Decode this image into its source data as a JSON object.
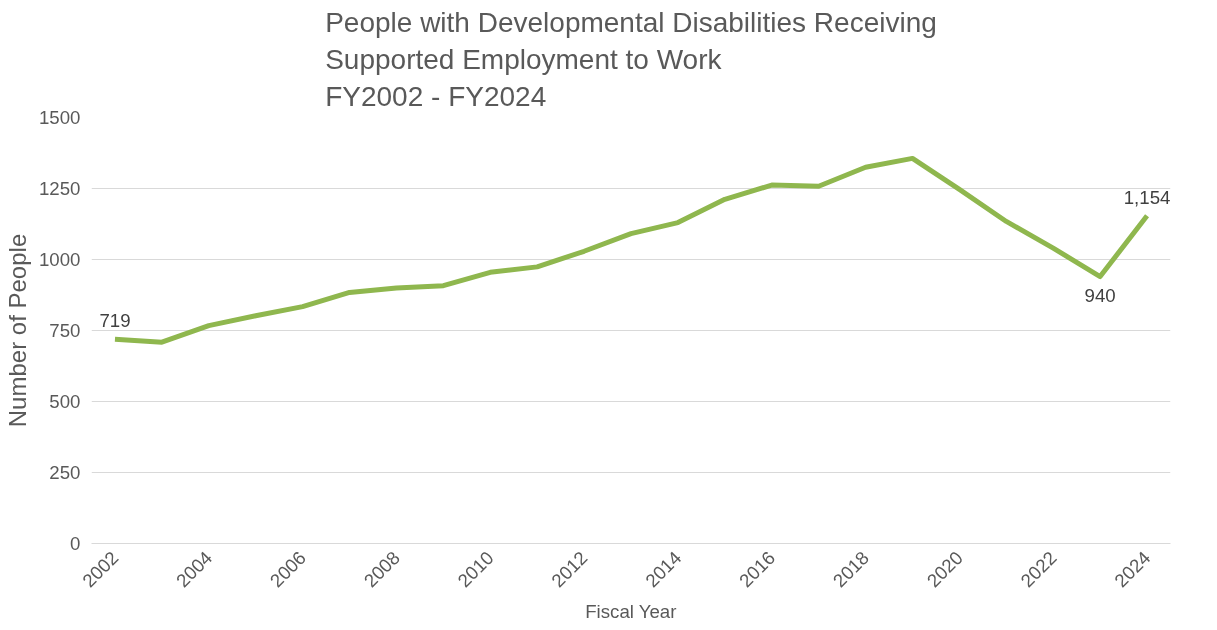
{
  "chart_data": {
    "type": "line",
    "title": "People with Developmental Disabilities Receiving\nSupported Employment to Work\nFY2002 - FY2024",
    "xlabel": "Fiscal Year",
    "ylabel": "Number of People",
    "x": [
      2002,
      2003,
      2004,
      2005,
      2006,
      2007,
      2008,
      2009,
      2010,
      2011,
      2012,
      2013,
      2014,
      2015,
      2016,
      2017,
      2018,
      2019,
      2020,
      2021,
      2022,
      2023,
      2024
    ],
    "series": [
      {
        "color": "#8fb74e",
        "values": [
          719,
          709,
          767,
          802,
          834,
          884,
          900,
          908,
          955,
          974,
          1029,
          1091,
          1130,
          1212,
          1262,
          1258,
          1325,
          1356,
          1247,
          1134,
          1040,
          940,
          1154
        ],
        "value_labels": [
          "719",
          null,
          null,
          null,
          null,
          null,
          null,
          null,
          null,
          null,
          null,
          null,
          null,
          null,
          null,
          null,
          null,
          null,
          null,
          null,
          null,
          "940",
          "1,154"
        ]
      }
    ],
    "xlim": [
      2001.5,
      2024.5
    ],
    "xticks": [
      2002,
      2004,
      2006,
      2008,
      2010,
      2012,
      2014,
      2016,
      2018,
      2020,
      2022,
      2024
    ],
    "ylim": [
      0,
      1500
    ],
    "yticks": [
      0,
      250,
      500,
      750,
      1000,
      1250,
      1500
    ],
    "grid": "y",
    "line_style": "solid",
    "marker": "none"
  }
}
